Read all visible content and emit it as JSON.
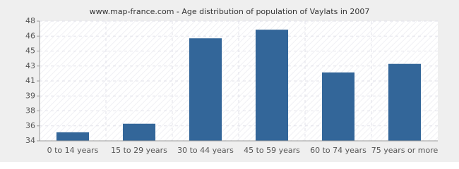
{
  "chart_data": {
    "type": "bar",
    "title": "www.map-france.com - Age distribution of population of Vaylats in 2007",
    "categories": [
      "0 to 14 years",
      "15 to 29 years",
      "30 to 44 years",
      "45 to 59 years",
      "60 to 74 years",
      "75 years or more"
    ],
    "values": [
      35,
      36,
      46,
      47,
      42,
      43
    ],
    "color": "#336699",
    "ylim": [
      34,
      48
    ],
    "yticks": [
      34,
      {
        "value": 35.75,
        "label": "36"
      },
      {
        "value": 37.5,
        "label": "38"
      },
      {
        "value": 39.25,
        "label": "39"
      },
      41,
      {
        "value": 42.75,
        "label": "43"
      },
      {
        "value": 44.5,
        "label": "45"
      },
      {
        "value": 46.25,
        "label": "46"
      },
      48
    ],
    "grid": true
  }
}
